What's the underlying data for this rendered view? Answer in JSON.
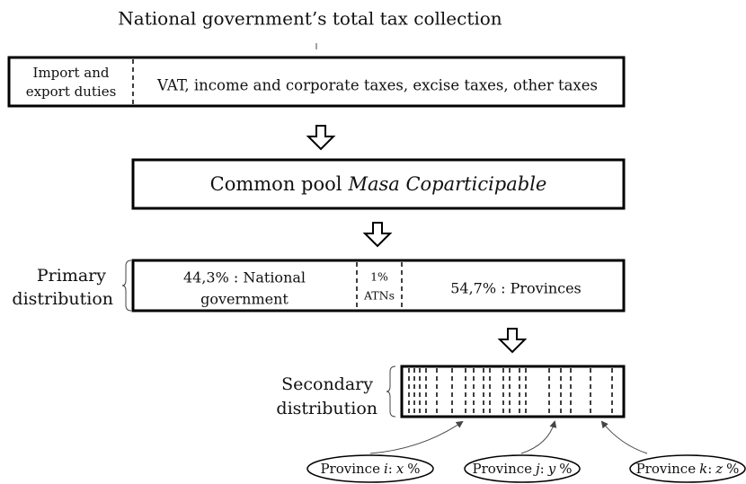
{
  "title": "National government’s total tax collection",
  "tax_collection": {
    "duties": [
      "Import and",
      "export duties"
    ],
    "other_taxes": "VAT, income and corporate taxes, excise taxes, other taxes"
  },
  "common_pool": {
    "text": "Common pool",
    "name": "Masa Coparticipable"
  },
  "primary_distribution": {
    "label": [
      "Primary",
      "distribution"
    ],
    "national": [
      "44,3% : National",
      "government"
    ],
    "atn": [
      "1%",
      "ATNs"
    ],
    "provinces": "54,7% : Provinces"
  },
  "secondary_distribution": {
    "label": [
      "Secondary",
      "distribution"
    ]
  },
  "provinces": [
    {
      "parts": [
        "Province",
        "i",
        ":",
        "x",
        "%"
      ]
    },
    {
      "parts": [
        "Province",
        "j",
        ":",
        "y",
        "%"
      ]
    },
    {
      "parts": [
        "Province",
        "k",
        ":",
        "z",
        "%"
      ]
    }
  ]
}
